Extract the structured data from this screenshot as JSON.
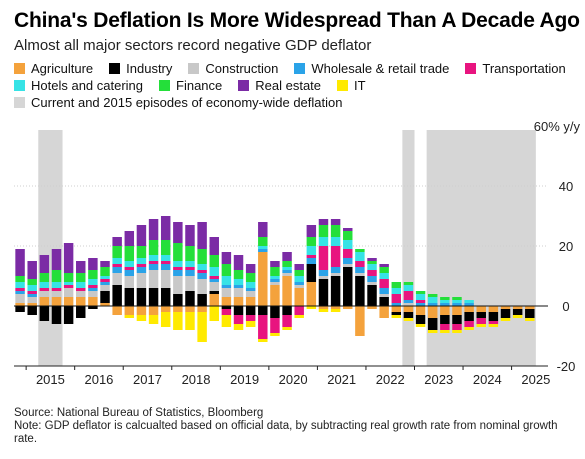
{
  "header": {
    "title": "China's Deflation Is More Widespread Than A Decade Ago",
    "subtitle": "Almost all major sectors record negative GDP deflator"
  },
  "footer": {
    "source": "Source: National Bureau of Statistics, Bloomberg",
    "note": "Note: GDP deflator is calcualted based on official data, by subtracting real growth rate from nominal growth rate."
  },
  "legend": {
    "rows": [
      [
        {
          "label": "Agriculture",
          "color": "#f4a23c"
        },
        {
          "label": "Industry",
          "color": "#000000"
        },
        {
          "label": "Construction",
          "color": "#c8c8c8"
        },
        {
          "label": "Wholesale & retail trade",
          "color": "#2aa3e8"
        },
        {
          "label": "Transportation",
          "color": "#e8147f"
        }
      ],
      [
        {
          "label": "Hotels and catering",
          "color": "#36e3e6"
        },
        {
          "label": "Finance",
          "color": "#24df3a"
        },
        {
          "label": "Real estate",
          "color": "#7b2ba5"
        },
        {
          "label": "IT",
          "color": "#ffea00"
        }
      ],
      [
        {
          "label": "Current and 2015 episodes of economy-wide deflation",
          "color": "#d6d6d6"
        }
      ]
    ]
  },
  "chart_data": {
    "type": "bar",
    "stacked": true,
    "unit": "60% y/y",
    "ylim": [
      -24,
      62
    ],
    "yticks": [
      -20,
      0,
      20,
      40
    ],
    "ytick_labels": [
      "-20",
      "0",
      "20",
      "40"
    ],
    "grid": true,
    "x_start_year": 2014.75,
    "x_end_year": 2025.75,
    "xticks": [
      "2015",
      "2016",
      "2017",
      "2018",
      "2019",
      "2020",
      "2021",
      "2022",
      "2023",
      "2024",
      "2025"
    ],
    "shaded_periods": [
      [
        2015.25,
        2015.75
      ],
      [
        2022.75,
        2023.0
      ],
      [
        2023.25,
        2025.5
      ]
    ],
    "quarters": [
      "2015Q1",
      "2015Q2",
      "2015Q3",
      "2015Q4",
      "2016Q1",
      "2016Q2",
      "2016Q3",
      "2016Q4",
      "2017Q1",
      "2017Q2",
      "2017Q3",
      "2017Q4",
      "2018Q1",
      "2018Q2",
      "2018Q3",
      "2018Q4",
      "2019Q1",
      "2019Q2",
      "2019Q3",
      "2019Q4",
      "2020Q1",
      "2020Q2",
      "2020Q3",
      "2020Q4",
      "2021Q1",
      "2021Q2",
      "2021Q3",
      "2021Q4",
      "2022Q1",
      "2022Q2",
      "2022Q3",
      "2022Q4",
      "2023Q1",
      "2023Q2",
      "2023Q3",
      "2023Q4",
      "2024Q1",
      "2024Q2",
      "2024Q3",
      "2024Q4",
      "2025Q1",
      "2025Q2",
      "2025Q3"
    ],
    "series": [
      {
        "name": "Agriculture",
        "color": "#f4a23c",
        "values": [
          1,
          1,
          3,
          3,
          3,
          3,
          3,
          1,
          -3,
          -3,
          -3,
          -3,
          -2,
          -2,
          -2,
          -2,
          4,
          3,
          3,
          3,
          18,
          7,
          10,
          6,
          8,
          -1,
          -1,
          -1,
          -10,
          -1,
          -4,
          -2,
          -2,
          -3,
          -4,
          -3,
          -3,
          -2,
          -2,
          -2,
          -1,
          -1,
          -1
        ]
      },
      {
        "name": "Industry",
        "color": "#000000",
        "values": [
          -2,
          -3,
          -5,
          -6,
          -6,
          -4,
          -1,
          4,
          7,
          6,
          6,
          6,
          6,
          4,
          5,
          4,
          1,
          -1,
          -3,
          -3,
          -3,
          -4,
          -3,
          0,
          6,
          9,
          10,
          13,
          10,
          7,
          3,
          -1,
          -2,
          -3,
          -4,
          -3,
          -3,
          -3,
          -2,
          -3,
          -3,
          -2,
          -3
        ]
      },
      {
        "name": "Construction",
        "color": "#c8c8c8",
        "values": [
          3,
          2,
          2,
          2,
          3,
          2,
          2,
          2,
          4,
          4,
          5,
          6,
          6,
          6,
          5,
          5,
          3,
          3,
          3,
          2,
          0,
          1,
          1,
          1,
          0,
          1,
          1,
          1,
          1,
          1,
          1,
          0,
          1,
          0,
          0,
          0,
          0,
          0,
          0,
          0,
          0,
          0,
          0
        ]
      },
      {
        "name": "Wholesale & retail trade",
        "color": "#2aa3e8",
        "values": [
          1,
          1,
          0,
          0,
          0,
          0,
          1,
          1,
          2,
          2,
          2,
          2,
          2,
          2,
          2,
          2,
          1,
          1,
          1,
          1,
          1,
          1,
          1,
          1,
          2,
          2,
          2,
          2,
          2,
          2,
          2,
          1,
          1,
          1,
          1,
          1,
          1,
          1,
          0,
          0,
          0,
          0,
          0
        ]
      },
      {
        "name": "Transportation",
        "color": "#e8147f",
        "values": [
          1,
          1,
          1,
          1,
          1,
          1,
          1,
          1,
          1,
          1,
          1,
          1,
          1,
          1,
          1,
          1,
          1,
          -2,
          -3,
          -2,
          -8,
          -5,
          -4,
          -3,
          1,
          8,
          7,
          3,
          2,
          2,
          3,
          3,
          3,
          1,
          0,
          -2,
          -2,
          -2,
          -2,
          -1,
          0,
          0,
          0
        ]
      },
      {
        "name": "Hotels and catering",
        "color": "#36e3e6",
        "values": [
          2,
          2,
          2,
          2,
          1,
          2,
          2,
          1,
          2,
          2,
          2,
          2,
          2,
          2,
          2,
          2,
          3,
          3,
          2,
          2,
          1,
          1,
          1,
          2,
          3,
          3,
          3,
          3,
          3,
          2,
          2,
          2,
          2,
          2,
          2,
          1,
          1,
          1,
          0,
          0,
          0,
          0,
          0
        ]
      },
      {
        "name": "Finance",
        "color": "#24df3a",
        "values": [
          2,
          2,
          3,
          4,
          3,
          3,
          3,
          3,
          4,
          5,
          4,
          5,
          5,
          6,
          5,
          5,
          4,
          4,
          3,
          3,
          3,
          3,
          2,
          2,
          3,
          4,
          4,
          3,
          1,
          1,
          2,
          2,
          1,
          1,
          1,
          1,
          1,
          0,
          0,
          0,
          0,
          0,
          0
        ]
      },
      {
        "name": "Real estate",
        "color": "#7b2ba5",
        "values": [
          9,
          6,
          6,
          7,
          10,
          4,
          4,
          2,
          3,
          5,
          7,
          7,
          8,
          7,
          7,
          9,
          6,
          4,
          5,
          3,
          5,
          2,
          3,
          2,
          4,
          2,
          2,
          1,
          0,
          1,
          1,
          0,
          0,
          0,
          0,
          0,
          0,
          0,
          0,
          0,
          0,
          0,
          0
        ]
      },
      {
        "name": "IT",
        "color": "#ffea00",
        "values": [
          0,
          0,
          0,
          0,
          0,
          0,
          0,
          0,
          0,
          -1,
          -2,
          -3,
          -5,
          -6,
          -6,
          -10,
          -5,
          -4,
          -2,
          -2,
          -1,
          -1,
          -1,
          -1,
          -1,
          -1,
          -1,
          0,
          0,
          0,
          0,
          -1,
          -1,
          -1,
          -1,
          -1,
          -1,
          -1,
          -1,
          -1,
          -1,
          -1,
          -1
        ]
      }
    ]
  }
}
